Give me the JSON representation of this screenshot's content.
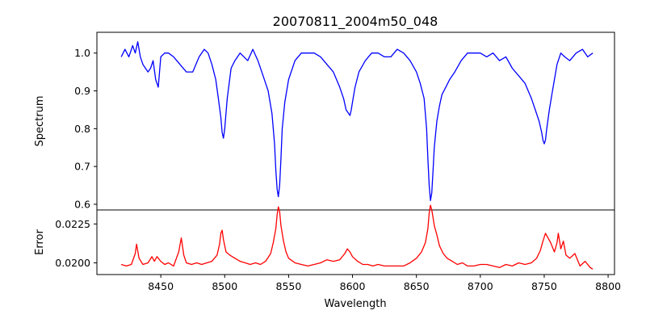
{
  "chart_data": [
    {
      "type": "line",
      "title": "20070811_2004m50_048",
      "xlabel": "",
      "ylabel": "Spectrum",
      "xlim": [
        8400,
        8805
      ],
      "ylim": [
        0.585,
        1.055
      ],
      "xticks": [],
      "yticks": [
        0.6,
        0.7,
        0.8,
        0.9,
        1.0
      ],
      "ytick_labels": [
        "0.6",
        "0.7",
        "0.8",
        "0.9",
        "1.0"
      ],
      "grid": false,
      "series": [
        {
          "color": "#0000ff",
          "x": [
            8419,
            8422,
            8425,
            8428,
            8430,
            8432,
            8434,
            8436,
            8438,
            8440,
            8442,
            8444,
            8446,
            8448,
            8450,
            8453,
            8456,
            8460,
            8465,
            8470,
            8475,
            8480,
            8484,
            8487,
            8490,
            8493,
            8495,
            8497,
            8498,
            8499,
            8500,
            8502,
            8505,
            8508,
            8512,
            8518,
            8522,
            8526,
            8530,
            8534,
            8537,
            8539,
            8540,
            8541,
            8542,
            8543,
            8544,
            8545,
            8547,
            8550,
            8555,
            8560,
            8565,
            8570,
            8575,
            8580,
            8585,
            8590,
            8593,
            8595,
            8597,
            8598,
            8599,
            8600,
            8602,
            8605,
            8610,
            8615,
            8620,
            8625,
            8630,
            8635,
            8640,
            8645,
            8650,
            8653,
            8656,
            8658,
            8659,
            8660,
            8661,
            8662,
            8663,
            8664,
            8666,
            8668,
            8670,
            8673,
            8676,
            8680,
            8685,
            8690,
            8695,
            8700,
            8705,
            8710,
            8715,
            8720,
            8725,
            8730,
            8735,
            8740,
            8743,
            8746,
            8748,
            8749,
            8750,
            8751,
            8752,
            8754,
            8756,
            8758,
            8760,
            8763,
            8766,
            8770,
            8775,
            8780,
            8784,
            8788
          ],
          "y": [
            0.99,
            1.01,
            0.99,
            1.02,
            1.0,
            1.03,
            0.99,
            0.97,
            0.96,
            0.95,
            0.96,
            0.98,
            0.93,
            0.91,
            0.99,
            1.0,
            1.0,
            0.99,
            0.97,
            0.95,
            0.95,
            0.99,
            1.01,
            1.0,
            0.97,
            0.93,
            0.88,
            0.83,
            0.79,
            0.775,
            0.8,
            0.88,
            0.96,
            0.98,
            1.0,
            0.98,
            1.01,
            0.98,
            0.94,
            0.9,
            0.84,
            0.76,
            0.69,
            0.64,
            0.62,
            0.65,
            0.72,
            0.8,
            0.87,
            0.93,
            0.98,
            1.0,
            1.0,
            1.0,
            0.99,
            0.97,
            0.95,
            0.91,
            0.88,
            0.85,
            0.84,
            0.835,
            0.85,
            0.87,
            0.91,
            0.95,
            0.98,
            1.0,
            1.0,
            0.99,
            0.99,
            1.01,
            1.0,
            0.98,
            0.95,
            0.92,
            0.88,
            0.8,
            0.72,
            0.65,
            0.61,
            0.63,
            0.69,
            0.75,
            0.82,
            0.86,
            0.89,
            0.91,
            0.93,
            0.95,
            0.98,
            1.0,
            1.0,
            1.0,
            0.99,
            1.0,
            0.98,
            0.99,
            0.96,
            0.94,
            0.92,
            0.88,
            0.85,
            0.82,
            0.79,
            0.77,
            0.76,
            0.77,
            0.8,
            0.85,
            0.89,
            0.93,
            0.97,
            1.0,
            0.99,
            0.98,
            1.0,
            1.01,
            0.99,
            1.0
          ]
        }
      ]
    },
    {
      "type": "line",
      "title": "",
      "xlabel": "Wavelength",
      "ylabel": "Error",
      "xlim": [
        8400,
        8805
      ],
      "ylim": [
        0.01925,
        0.0234
      ],
      "xticks": [
        8450,
        8500,
        8550,
        8600,
        8650,
        8700,
        8750,
        8800
      ],
      "xtick_labels": [
        "8450",
        "8500",
        "8550",
        "8600",
        "8650",
        "8700",
        "8750",
        "8800"
      ],
      "yticks": [
        0.02,
        0.0225
      ],
      "ytick_labels": [
        "0.0200",
        "0.0225"
      ],
      "grid": false,
      "series": [
        {
          "color": "#ff0000",
          "x": [
            8419,
            8423,
            8427,
            8430,
            8431,
            8433,
            8436,
            8440,
            8443,
            8445,
            8447,
            8450,
            8453,
            8456,
            8460,
            8464,
            8466,
            8468,
            8470,
            8474,
            8478,
            8482,
            8486,
            8490,
            8494,
            8496,
            8497,
            8498,
            8499,
            8501,
            8504,
            8508,
            8512,
            8516,
            8520,
            8524,
            8528,
            8532,
            8536,
            8538,
            8540,
            8541,
            8542,
            8543,
            8544,
            8546,
            8548,
            8550,
            8555,
            8560,
            8565,
            8570,
            8575,
            8580,
            8585,
            8590,
            8594,
            8596,
            8598,
            8600,
            8604,
            8608,
            8612,
            8616,
            8620,
            8625,
            8630,
            8635,
            8640,
            8645,
            8650,
            8654,
            8657,
            8659,
            8660,
            8661,
            8662,
            8663,
            8664,
            8666,
            8668,
            8671,
            8674,
            8678,
            8682,
            8686,
            8690,
            8695,
            8700,
            8705,
            8710,
            8715,
            8720,
            8725,
            8730,
            8735,
            8740,
            8744,
            8747,
            8749,
            8751,
            8753,
            8755,
            8758,
            8760,
            8761,
            8763,
            8765,
            8767,
            8770,
            8774,
            8778,
            8782,
            8786,
            8788
          ],
          "y": [
            0.0199,
            0.0198,
            0.0199,
            0.0206,
            0.0212,
            0.0203,
            0.0199,
            0.02,
            0.0204,
            0.0201,
            0.0204,
            0.0201,
            0.0199,
            0.02,
            0.0198,
            0.0207,
            0.0216,
            0.0205,
            0.02,
            0.0199,
            0.02,
            0.0199,
            0.02,
            0.0201,
            0.0205,
            0.0212,
            0.0219,
            0.0221,
            0.0215,
            0.0207,
            0.0205,
            0.0203,
            0.0201,
            0.02,
            0.0199,
            0.02,
            0.0199,
            0.0201,
            0.0206,
            0.0213,
            0.0222,
            0.0231,
            0.0236,
            0.0233,
            0.0224,
            0.0214,
            0.0207,
            0.0203,
            0.02,
            0.0199,
            0.0198,
            0.0199,
            0.02,
            0.0202,
            0.0201,
            0.0202,
            0.0206,
            0.0209,
            0.0207,
            0.0204,
            0.0201,
            0.0199,
            0.0199,
            0.0198,
            0.0199,
            0.0198,
            0.0198,
            0.0198,
            0.0198,
            0.02,
            0.0203,
            0.0207,
            0.0213,
            0.0222,
            0.0232,
            0.0237,
            0.0234,
            0.0229,
            0.0224,
            0.0218,
            0.0211,
            0.0206,
            0.0203,
            0.0201,
            0.0199,
            0.02,
            0.0198,
            0.0198,
            0.0199,
            0.0199,
            0.0198,
            0.0197,
            0.0199,
            0.0198,
            0.02,
            0.0199,
            0.02,
            0.0203,
            0.0208,
            0.0214,
            0.0219,
            0.0216,
            0.0213,
            0.0207,
            0.0213,
            0.0219,
            0.0209,
            0.0214,
            0.0205,
            0.0203,
            0.0206,
            0.0198,
            0.0201,
            0.0197,
            0.0196
          ]
        }
      ]
    }
  ]
}
